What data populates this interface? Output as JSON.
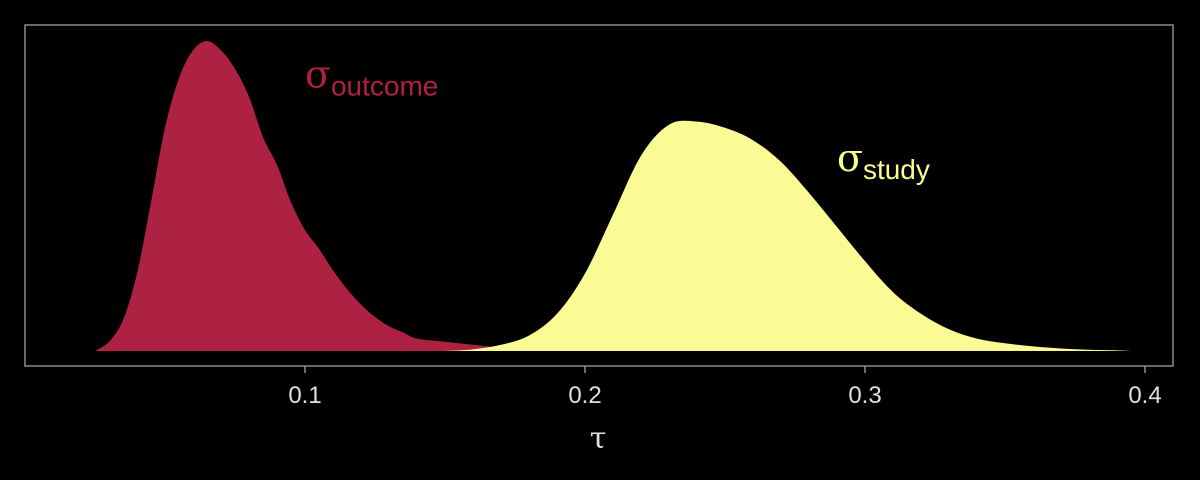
{
  "chart_data": {
    "type": "area",
    "title": "",
    "xlabel": "τ",
    "ylabel": "",
    "xlim": [
      0.0,
      0.41
    ],
    "xticks": [
      0.1,
      0.2,
      0.3,
      0.4
    ],
    "xtick_labels": [
      "0.1",
      "0.2",
      "0.3",
      "0.4"
    ],
    "grid": false,
    "legend": "none",
    "series": [
      {
        "name": "σoutcome",
        "label_main": "σ",
        "label_sub": "outcome",
        "color": "#ad2242",
        "label_at": [
          0.1,
          0.85
        ],
        "x": [
          0.025,
          0.03,
          0.035,
          0.04,
          0.045,
          0.05,
          0.055,
          0.06,
          0.065,
          0.07,
          0.075,
          0.08,
          0.085,
          0.09,
          0.095,
          0.1,
          0.105,
          0.11,
          0.115,
          0.12,
          0.125,
          0.13,
          0.135,
          0.14,
          0.15,
          0.16,
          0.17,
          0.18,
          0.19
        ],
        "y": [
          0,
          0.03,
          0.1,
          0.25,
          0.48,
          0.72,
          0.88,
          0.97,
          1.0,
          0.97,
          0.91,
          0.82,
          0.69,
          0.6,
          0.48,
          0.39,
          0.33,
          0.26,
          0.2,
          0.15,
          0.11,
          0.08,
          0.06,
          0.04,
          0.03,
          0.02,
          0.01,
          0.005,
          0
        ]
      },
      {
        "name": "σstudy",
        "label_main": "σ",
        "label_sub": "study",
        "color": "#fbfb96",
        "label_at": [
          0.29,
          0.58
        ],
        "x": [
          0.15,
          0.16,
          0.17,
          0.18,
          0.19,
          0.2,
          0.21,
          0.22,
          0.23,
          0.24,
          0.25,
          0.26,
          0.27,
          0.28,
          0.29,
          0.3,
          0.31,
          0.32,
          0.33,
          0.34,
          0.35,
          0.36,
          0.37,
          0.38,
          0.39,
          0.395
        ],
        "y": [
          0,
          0.005,
          0.02,
          0.05,
          0.12,
          0.25,
          0.44,
          0.63,
          0.73,
          0.74,
          0.72,
          0.68,
          0.61,
          0.51,
          0.4,
          0.29,
          0.19,
          0.12,
          0.07,
          0.04,
          0.025,
          0.015,
          0.008,
          0.004,
          0.002,
          0
        ]
      }
    ],
    "colors": {
      "background": "#000000",
      "panel_border": "#8c8c8c",
      "tick_text": "#e0e0e0"
    }
  }
}
